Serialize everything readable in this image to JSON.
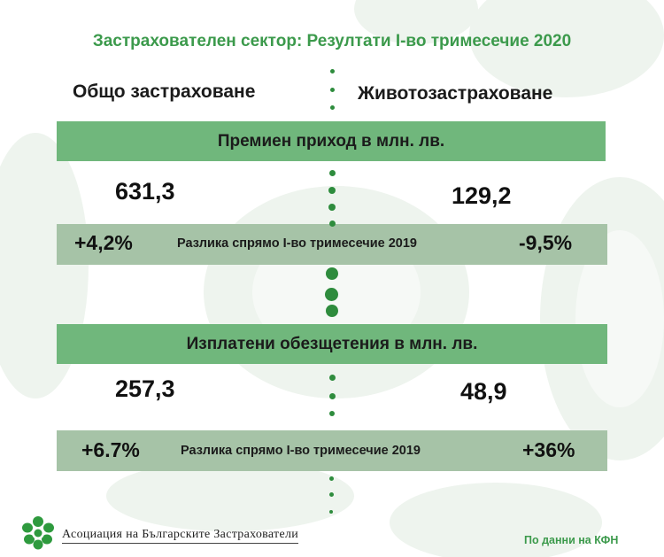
{
  "title": "Застрахователен сектор: Резултати I-во тримесечие 2020",
  "columns": {
    "left": "Общо застраховане",
    "right": "Животозастраховане"
  },
  "premiums": {
    "header": "Премиен приход в млн. лв.",
    "left_value": "631,3",
    "right_value": "129,2",
    "diff_left": "+4,2%",
    "diff_label": "Разлика спрямо I-во тримесечие 2019",
    "diff_right": "-9,5%"
  },
  "claims": {
    "header": "Изплатени обезщетения в млн. лв.",
    "left_value": "257,3",
    "right_value": "48,9",
    "diff_left": "+6.7%",
    "diff_label": "Разлика спрямо I-во тримесечие 2019",
    "diff_right": "+36%"
  },
  "footer": {
    "org_name": "Асоциация на Българските Застрахователи",
    "source": "По данни на КФН"
  },
  "colors": {
    "title_green": "#3c9a4c",
    "band_green": "#70b77c",
    "diff_bar": "#a6c3a7",
    "dot_green": "#2e8c3d"
  }
}
